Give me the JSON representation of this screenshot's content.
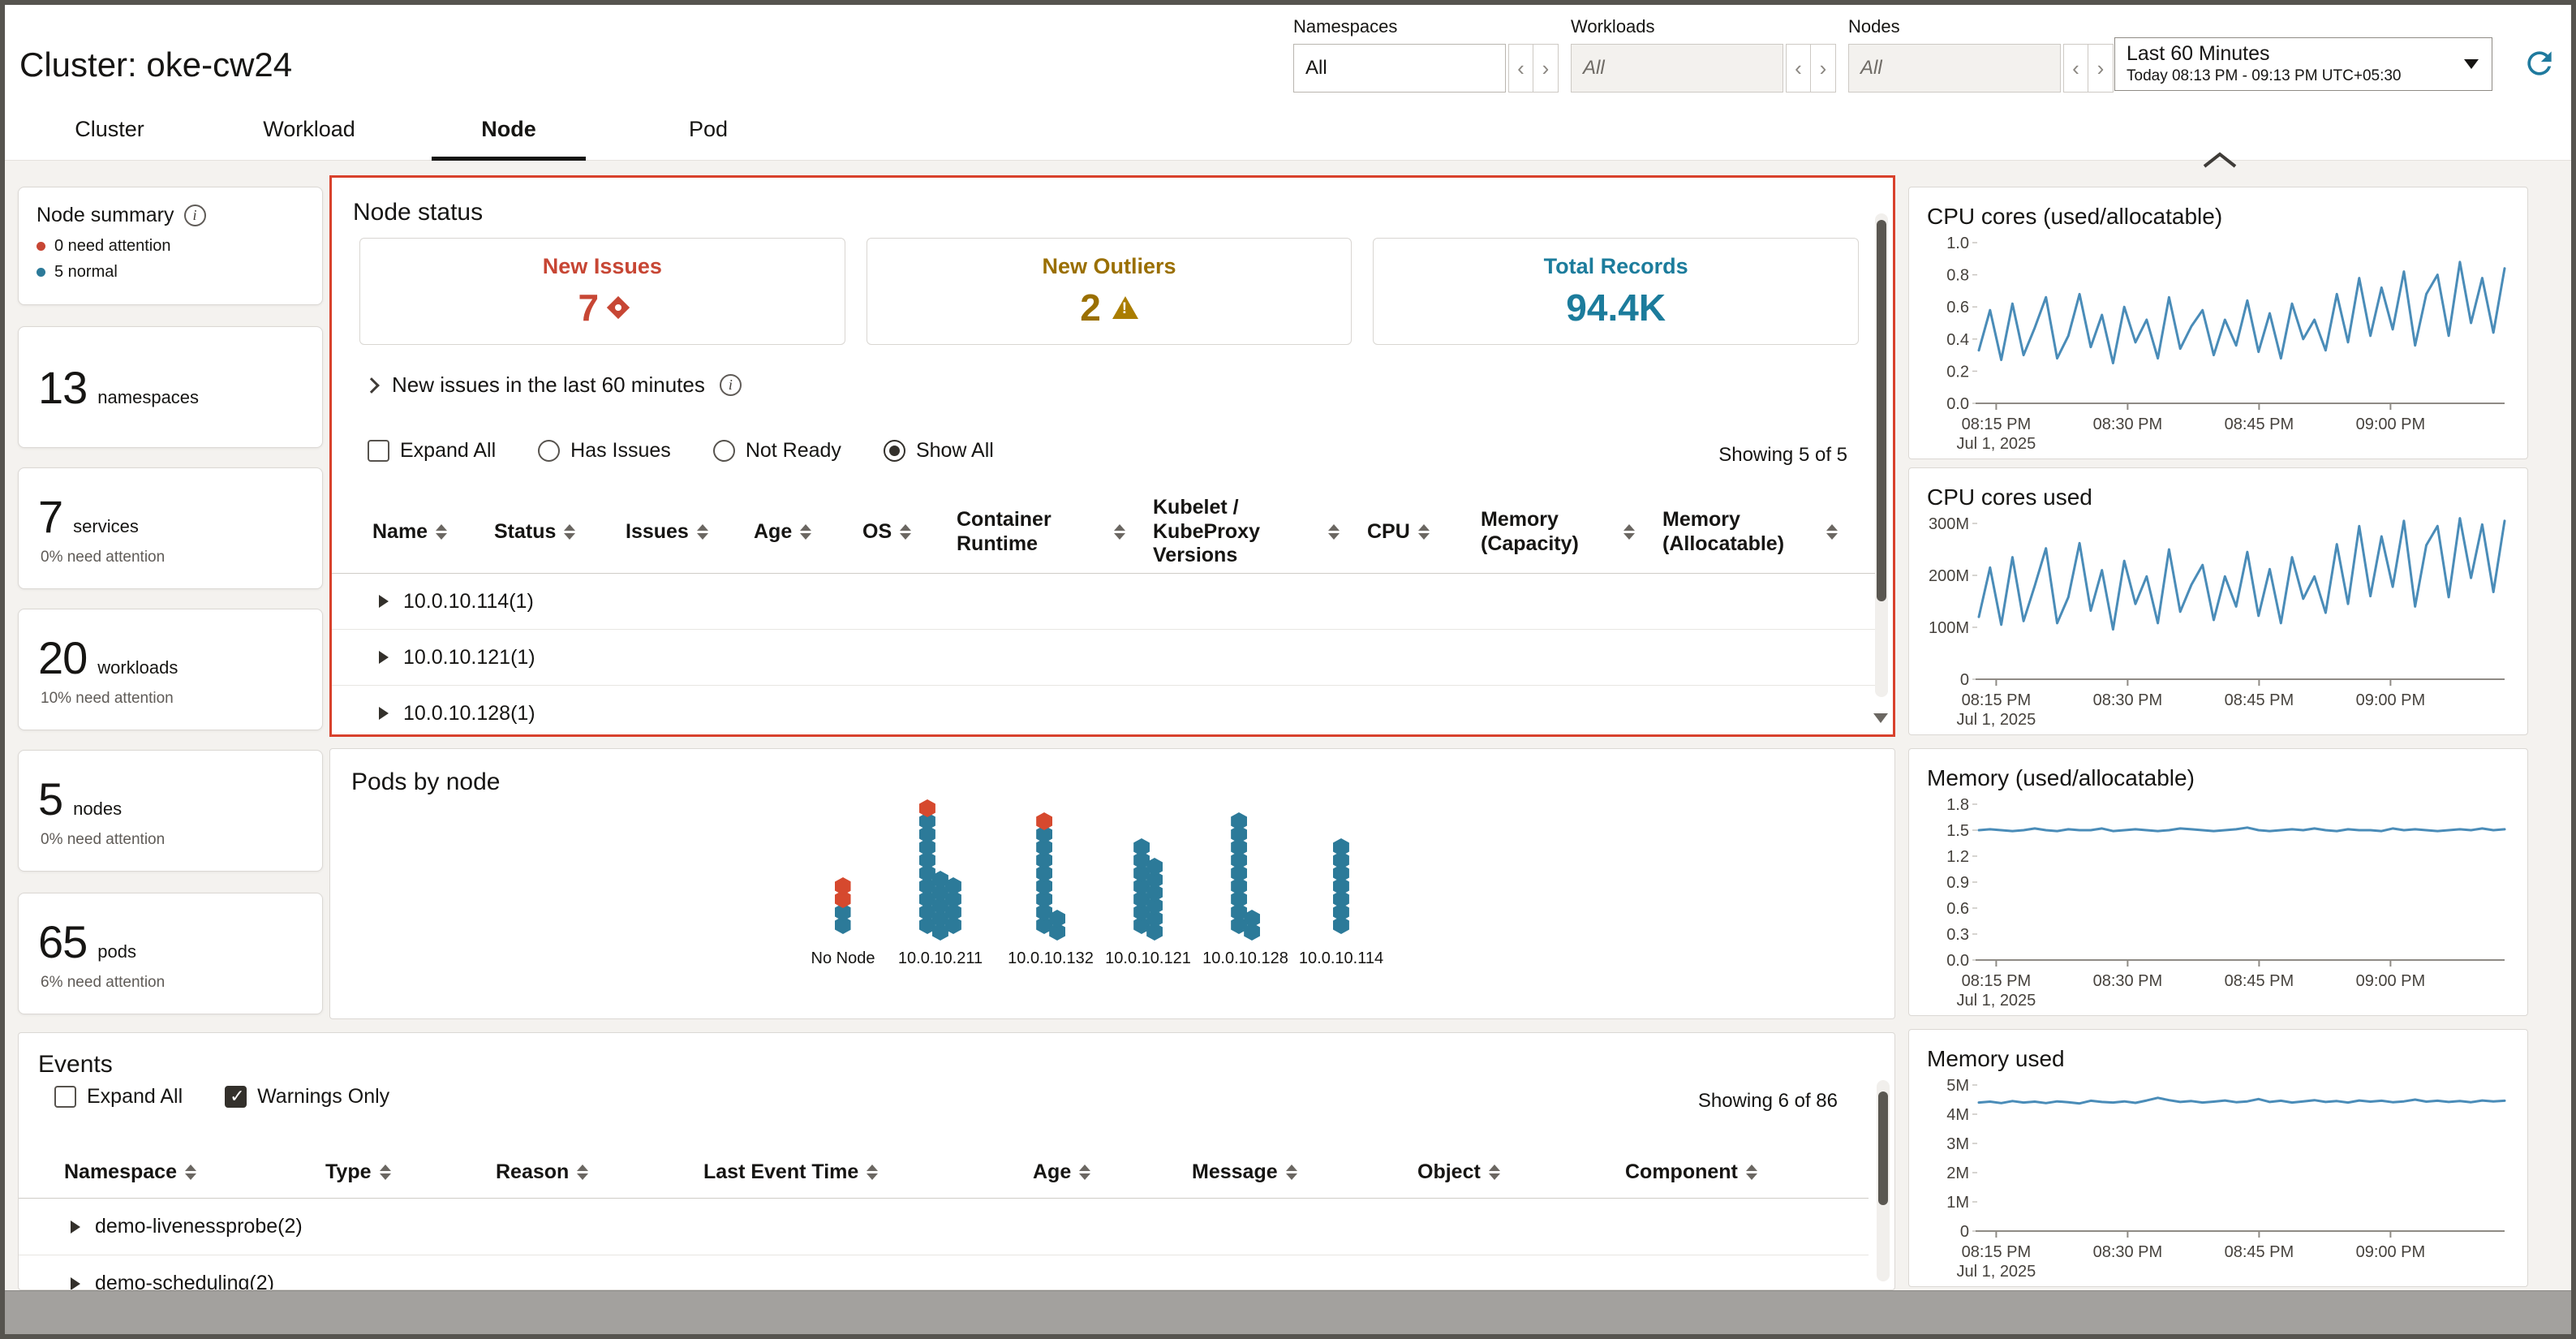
{
  "header": {
    "title": "Cluster: oke-cw24",
    "tabs": [
      {
        "label": "Cluster",
        "active": false
      },
      {
        "label": "Workload",
        "active": false
      },
      {
        "label": "Node",
        "active": true
      },
      {
        "label": "Pod",
        "active": false
      }
    ],
    "filters": [
      {
        "label": "Namespaces",
        "value": "All",
        "disabled": false
      },
      {
        "label": "Workloads",
        "value": "All",
        "disabled": true
      },
      {
        "label": "Nodes",
        "value": "All",
        "disabled": true
      }
    ],
    "time_picker": {
      "range": "Last 60 Minutes",
      "detail": "Today 08:13 PM - 09:13 PM UTC+05:30"
    }
  },
  "sidebar": {
    "summary_title": "Node summary",
    "legend": [
      {
        "label": "0 need attention",
        "color": "#c74634"
      },
      {
        "label": "5 normal",
        "color": "#2c7a99"
      }
    ],
    "cards": [
      {
        "count": "13",
        "label": "namespaces",
        "sub": ""
      },
      {
        "count": "7",
        "label": "services",
        "sub": "0% need attention"
      },
      {
        "count": "20",
        "label": "workloads",
        "sub": "10% need attention"
      },
      {
        "count": "5",
        "label": "nodes",
        "sub": "0% need attention"
      },
      {
        "count": "65",
        "label": "pods",
        "sub": "6% need attention"
      }
    ]
  },
  "node_status": {
    "title": "Node status",
    "cards": [
      {
        "label": "New Issues",
        "value": "7",
        "color": "#c74634",
        "icon": "error-diamond-icon"
      },
      {
        "label": "New Outliers",
        "value": "2",
        "color": "#9a6f00",
        "icon": "warning-triangle-icon"
      },
      {
        "label": "Total Records",
        "value": "94.4K",
        "color": "#1c7c9c",
        "icon": ""
      }
    ],
    "toggle_label": "New issues in the last 60 minutes",
    "expand_all": "Expand All",
    "radios": [
      {
        "label": "Has Issues",
        "selected": false
      },
      {
        "label": "Not Ready",
        "selected": false
      },
      {
        "label": "Show All",
        "selected": true
      }
    ],
    "showing": "Showing 5 of 5",
    "columns": [
      "Name",
      "Status",
      "Issues",
      "Age",
      "OS",
      "Container Runtime",
      "Kubelet / KubeProxy Versions",
      "CPU",
      "Memory (Capacity)",
      "Memory (Allocatable)"
    ],
    "rows": [
      "10.0.10.114(1)",
      "10.0.10.121(1)",
      "10.0.10.128(1)"
    ]
  },
  "pods_by_node": {
    "title": "Pods by node",
    "normal_color": "#2c7a99",
    "attention_color": "#d6492e",
    "groups": [
      {
        "label": "No Node",
        "total": 4,
        "attention": 2,
        "columns": [
          4
        ]
      },
      {
        "label": "10.0.10.211",
        "total": 19,
        "attention": 1,
        "columns": [
          10,
          5,
          4
        ]
      },
      {
        "label": "10.0.10.132",
        "total": 11,
        "attention": 1,
        "columns": [
          9,
          2
        ]
      },
      {
        "label": "10.0.10.121",
        "total": 13,
        "attention": 0,
        "columns": [
          7,
          6
        ]
      },
      {
        "label": "10.0.10.128",
        "total": 11,
        "attention": 0,
        "columns": [
          9,
          2
        ]
      },
      {
        "label": "10.0.10.114",
        "total": 7,
        "attention": 0,
        "columns": [
          7
        ]
      }
    ]
  },
  "events": {
    "title": "Events",
    "expand_all": "Expand All",
    "warnings_only": "Warnings Only",
    "warnings_checked": true,
    "showing": "Showing 6 of 86",
    "columns": [
      "Namespace",
      "Type",
      "Reason",
      "Last Event Time",
      "Age",
      "Message",
      "Object",
      "Component"
    ],
    "rows": [
      "demo-livenessprobe(2)",
      "demo-scheduling(2)"
    ]
  },
  "chart_data": [
    {
      "type": "line",
      "title": "CPU cores (used/allocatable)",
      "ylim": [
        0,
        1.0
      ],
      "ytick_labels": [
        "1.0",
        "0.8",
        "0.6",
        "0.4",
        "0.2",
        "0.0"
      ],
      "xtick_labels": [
        "08:15 PM",
        "08:30 PM",
        "08:45 PM",
        "09:00 PM"
      ],
      "date_label": "Jul 1, 2025",
      "values": [
        0.33,
        0.58,
        0.27,
        0.62,
        0.3,
        0.47,
        0.66,
        0.28,
        0.42,
        0.68,
        0.35,
        0.55,
        0.25,
        0.6,
        0.38,
        0.52,
        0.28,
        0.66,
        0.34,
        0.48,
        0.58,
        0.3,
        0.52,
        0.36,
        0.64,
        0.32,
        0.56,
        0.28,
        0.62,
        0.4,
        0.52,
        0.33,
        0.68,
        0.38,
        0.78,
        0.42,
        0.72,
        0.46,
        0.82,
        0.36,
        0.68,
        0.8,
        0.42,
        0.88,
        0.5,
        0.78,
        0.44,
        0.84
      ]
    },
    {
      "type": "line",
      "title": "CPU cores used",
      "ylim": [
        0,
        300
      ],
      "ytick_labels": [
        "300M",
        "200M",
        "100M",
        "0"
      ],
      "xtick_labels": [
        "08:15 PM",
        "08:30 PM",
        "08:45 PM",
        "09:00 PM"
      ],
      "date_label": "Jul 1, 2025",
      "values": [
        120,
        215,
        105,
        235,
        112,
        180,
        252,
        108,
        158,
        262,
        132,
        210,
        96,
        228,
        145,
        198,
        108,
        250,
        130,
        182,
        220,
        114,
        198,
        140,
        245,
        122,
        212,
        108,
        235,
        155,
        198,
        128,
        260,
        145,
        295,
        160,
        275,
        178,
        305,
        140,
        258,
        295,
        158,
        310,
        195,
        298,
        168,
        305
      ]
    },
    {
      "type": "line",
      "title": "Memory (used/allocatable)",
      "ylim": [
        0,
        1.8
      ],
      "ytick_labels": [
        "1.8",
        "1.5",
        "1.2",
        "0.9",
        "0.6",
        "0.3",
        "0.0"
      ],
      "xtick_labels": [
        "08:15 PM",
        "08:30 PM",
        "08:45 PM",
        "09:00 PM"
      ],
      "date_label": "Jul 1, 2025",
      "values": [
        1.5,
        1.51,
        1.5,
        1.49,
        1.5,
        1.52,
        1.5,
        1.49,
        1.51,
        1.5,
        1.5,
        1.52,
        1.49,
        1.5,
        1.51,
        1.5,
        1.49,
        1.5,
        1.52,
        1.51,
        1.5,
        1.49,
        1.5,
        1.51,
        1.53,
        1.5,
        1.49,
        1.5,
        1.51,
        1.5,
        1.52,
        1.5,
        1.49,
        1.51,
        1.5,
        1.5,
        1.49,
        1.52,
        1.5,
        1.51,
        1.5,
        1.49,
        1.5,
        1.51,
        1.5,
        1.52,
        1.5,
        1.51
      ]
    },
    {
      "type": "line",
      "title": "Memory used",
      "ylim": [
        0,
        5
      ],
      "ytick_labels": [
        "5M",
        "4M",
        "3M",
        "2M",
        "1M",
        "0"
      ],
      "xtick_labels": [
        "08:15 PM",
        "08:30 PM",
        "08:45 PM",
        "09:00 PM"
      ],
      "date_label": "Jul 1, 2025",
      "values": [
        4.4,
        4.43,
        4.38,
        4.45,
        4.4,
        4.43,
        4.38,
        4.44,
        4.41,
        4.37,
        4.46,
        4.42,
        4.4,
        4.44,
        4.39,
        4.47,
        4.56,
        4.48,
        4.42,
        4.45,
        4.4,
        4.43,
        4.47,
        4.41,
        4.44,
        4.52,
        4.42,
        4.46,
        4.4,
        4.44,
        4.48,
        4.42,
        4.45,
        4.4,
        4.47,
        4.43,
        4.46,
        4.41,
        4.44,
        4.5,
        4.43,
        4.46,
        4.42,
        4.45,
        4.41,
        4.47,
        4.44,
        4.46
      ]
    }
  ],
  "colors": {
    "accent_red": "#d8412c",
    "line_blue": "#4a8cb8",
    "refresh_teal": "#1f7a9e"
  }
}
